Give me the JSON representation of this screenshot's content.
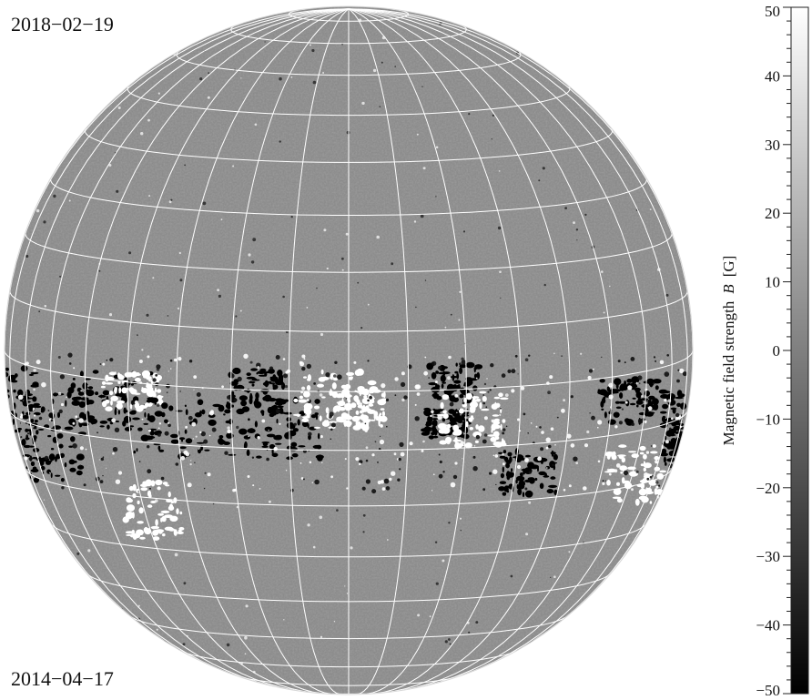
{
  "labels": {
    "date_top": "2018−02−19",
    "date_bottom": "2014−04−17"
  },
  "colorbar": {
    "label": "Magnetic field strength",
    "symbol": "B",
    "unit": "[G]",
    "min": -50,
    "max": 50,
    "major_ticks": [
      50,
      40,
      30,
      20,
      10,
      0,
      -10,
      -20,
      -30,
      -40,
      -50
    ],
    "tick_labels": [
      "50",
      "40",
      "30",
      "20",
      "10",
      "0",
      "−10",
      "−20",
      "−30",
      "−40",
      "−50"
    ],
    "color_low": "#000000",
    "color_high": "#ffffff"
  },
  "image": {
    "subject": "solar magnetogram disk with latitude/longitude grid",
    "background_gray": "#8c8c8c",
    "grid_color": "#ffffff"
  }
}
